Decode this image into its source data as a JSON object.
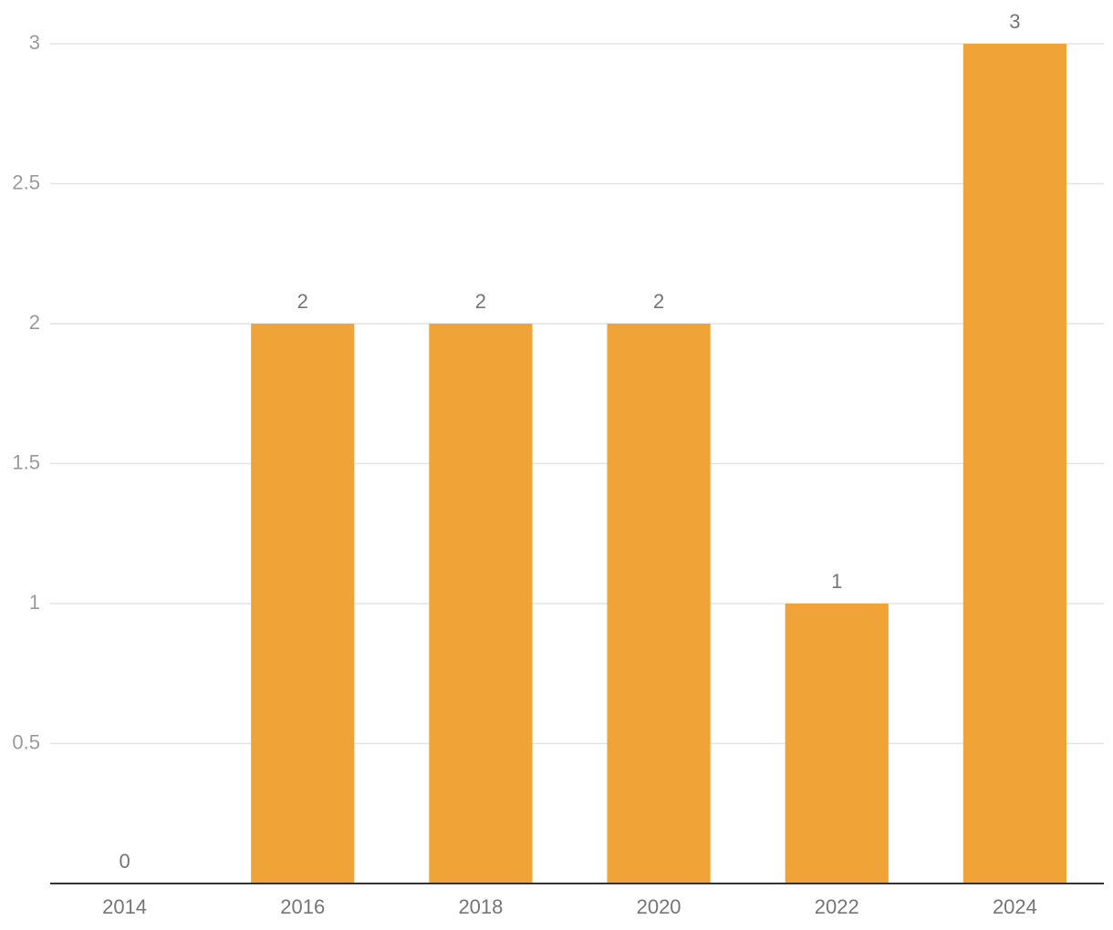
{
  "chart_data": {
    "type": "bar",
    "categories": [
      "2014",
      "2016",
      "2018",
      "2020",
      "2022",
      "2024"
    ],
    "values": [
      0,
      2,
      2,
      2,
      1,
      3
    ],
    "color": "#f0a336",
    "ylim": [
      0,
      3
    ],
    "yticks": [
      0.5,
      1,
      1.5,
      2,
      2.5,
      3
    ],
    "grid": true
  }
}
